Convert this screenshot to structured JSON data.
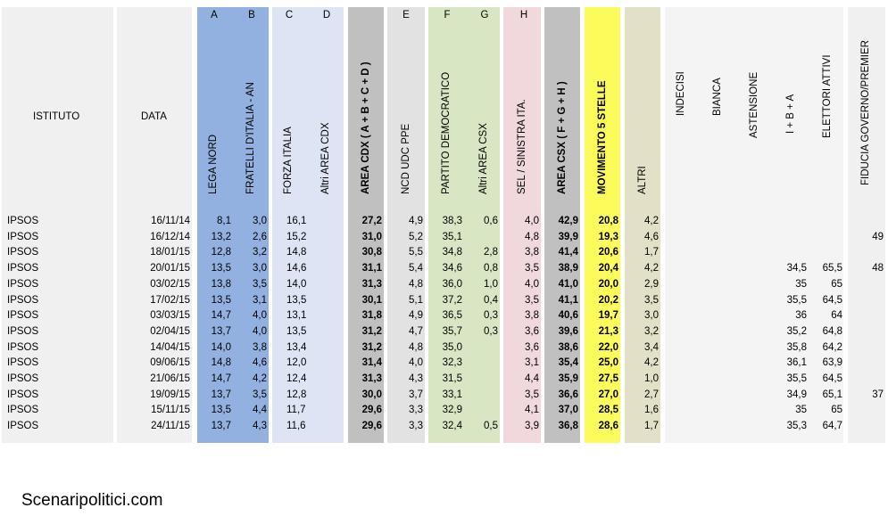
{
  "header": {
    "istituto": "ISTITUTO",
    "data": "DATA",
    "letters": [
      "A",
      "B",
      "C",
      "D",
      "E",
      "F",
      "G",
      "H"
    ],
    "columns": {
      "lega": "LEGA NORD",
      "fdi": "FRATELLI D'ITALIA - AN",
      "fi": "FORZA ITALIA",
      "altri_cdx": "Altri AREA CDX",
      "area_cdx": "AREA CDX   ( A + B + C + D )",
      "ncd": "NCD UDC PPE",
      "pd": "PARTITO DEMOCRATICO",
      "altri_csx": "Altri AREA CSX",
      "sel": "SEL / SINISTRA ITA.",
      "area_csx": "AREA CSX    ( F + G + H )",
      "m5s": "MOVIMENTO 5 STELLE",
      "altri": "ALTRI",
      "indecisi": "INDECISI",
      "bianca": "BIANCA",
      "astensione": "ASTENSIONE",
      "iba": "I + B + A",
      "elettori": "ELETTORI ATTIVI",
      "fiducia": "FIDUCIA GOVERNO/PREMIER"
    }
  },
  "rows": [
    {
      "ist": "IPSOS",
      "date": "16/11/14",
      "a": "8,1",
      "b": "3,0",
      "c": "16,1",
      "d": "",
      "cdx": "27,2",
      "e": "4,9",
      "f": "38,3",
      "g": "0,6",
      "h": "4,0",
      "csx": "42,9",
      "m5s": "20,8",
      "alt": "4,2",
      "iba": "",
      "el": "",
      "fid": ""
    },
    {
      "ist": "IPSOS",
      "date": "16/12/14",
      "a": "13,2",
      "b": "2,6",
      "c": "15,2",
      "d": "",
      "cdx": "31,0",
      "e": "5,2",
      "f": "35,1",
      "g": "",
      "h": "4,8",
      "csx": "39,9",
      "m5s": "19,3",
      "alt": "4,6",
      "iba": "",
      "el": "",
      "fid": "49"
    },
    {
      "ist": "IPSOS",
      "date": "18/01/15",
      "a": "12,8",
      "b": "3,2",
      "c": "14,8",
      "d": "",
      "cdx": "30,8",
      "e": "5,5",
      "f": "34,8",
      "g": "2,8",
      "h": "3,8",
      "csx": "41,4",
      "m5s": "20,6",
      "alt": "1,7",
      "iba": "",
      "el": "",
      "fid": ""
    },
    {
      "ist": "IPSOS",
      "date": "20/01/15",
      "a": "13,5",
      "b": "3,0",
      "c": "14,6",
      "d": "",
      "cdx": "31,1",
      "e": "5,4",
      "f": "34,6",
      "g": "0,8",
      "h": "3,5",
      "csx": "38,9",
      "m5s": "20,4",
      "alt": "4,2",
      "iba": "34,5",
      "el": "65,5",
      "fid": "48"
    },
    {
      "ist": "IPSOS",
      "date": "03/02/15",
      "a": "13,8",
      "b": "3,5",
      "c": "14,0",
      "d": "",
      "cdx": "31,3",
      "e": "4,8",
      "f": "36,0",
      "g": "1,0",
      "h": "4,0",
      "csx": "41,0",
      "m5s": "20,0",
      "alt": "2,9",
      "iba": "35",
      "el": "65",
      "fid": ""
    },
    {
      "ist": "IPSOS",
      "date": "17/02/15",
      "a": "13,5",
      "b": "3,1",
      "c": "13,5",
      "d": "",
      "cdx": "30,1",
      "e": "5,1",
      "f": "37,2",
      "g": "0,4",
      "h": "3,5",
      "csx": "41,1",
      "m5s": "20,2",
      "alt": "3,5",
      "iba": "35,5",
      "el": "64,5",
      "fid": ""
    },
    {
      "ist": "IPSOS",
      "date": "03/03/15",
      "a": "14,7",
      "b": "4,0",
      "c": "13,1",
      "d": "",
      "cdx": "31,8",
      "e": "4,9",
      "f": "36,5",
      "g": "0,3",
      "h": "3,8",
      "csx": "40,6",
      "m5s": "19,7",
      "alt": "3,0",
      "iba": "36",
      "el": "64",
      "fid": ""
    },
    {
      "ist": "IPSOS",
      "date": "02/04/15",
      "a": "13,7",
      "b": "4,0",
      "c": "13,5",
      "d": "",
      "cdx": "31,2",
      "e": "4,7",
      "f": "35,7",
      "g": "0,3",
      "h": "3,6",
      "csx": "39,6",
      "m5s": "21,3",
      "alt": "3,2",
      "iba": "35,2",
      "el": "64,8",
      "fid": ""
    },
    {
      "ist": "IPSOS",
      "date": "14/04/15",
      "a": "14,0",
      "b": "3,8",
      "c": "13,4",
      "d": "",
      "cdx": "31,2",
      "e": "4,8",
      "f": "35,0",
      "g": "",
      "h": "3,6",
      "csx": "38,6",
      "m5s": "22,0",
      "alt": "3,4",
      "iba": "35,8",
      "el": "64,2",
      "fid": ""
    },
    {
      "ist": "IPSOS",
      "date": "09/06/15",
      "a": "14,8",
      "b": "4,6",
      "c": "12,0",
      "d": "",
      "cdx": "31,4",
      "e": "4,0",
      "f": "32,3",
      "g": "",
      "h": "3,1",
      "csx": "35,4",
      "m5s": "25,0",
      "alt": "4,2",
      "iba": "36,1",
      "el": "63,9",
      "fid": ""
    },
    {
      "ist": "IPSOS",
      "date": "21/06/15",
      "a": "14,7",
      "b": "4,2",
      "c": "12,4",
      "d": "",
      "cdx": "31,3",
      "e": "4,3",
      "f": "31,5",
      "g": "",
      "h": "4,4",
      "csx": "35,9",
      "m5s": "27,5",
      "alt": "1,0",
      "iba": "35,5",
      "el": "64,5",
      "fid": ""
    },
    {
      "ist": "IPSOS",
      "date": "19/09/15",
      "a": "13,7",
      "b": "3,5",
      "c": "12,8",
      "d": "",
      "cdx": "30,0",
      "e": "3,7",
      "f": "33,1",
      "g": "",
      "h": "3,5",
      "csx": "36,6",
      "m5s": "27,0",
      "alt": "2,7",
      "iba": "34,9",
      "el": "65,1",
      "fid": "37"
    },
    {
      "ist": "IPSOS",
      "date": "15/11/15",
      "a": "13,5",
      "b": "4,4",
      "c": "11,7",
      "d": "",
      "cdx": "29,6",
      "e": "3,3",
      "f": "32,9",
      "g": "",
      "h": "4,1",
      "csx": "37,0",
      "m5s": "28,5",
      "alt": "1,6",
      "iba": "35",
      "el": "65",
      "fid": ""
    },
    {
      "ist": "IPSOS",
      "date": "24/11/15",
      "a": "13,7",
      "b": "4,3",
      "c": "11,6",
      "d": "",
      "cdx": "29,6",
      "e": "3,3",
      "f": "32,4",
      "g": "0,5",
      "h": "3,9",
      "csx": "36,8",
      "m5s": "28,6",
      "alt": "1,7",
      "iba": "35,3",
      "el": "64,7",
      "fid": ""
    }
  ],
  "footer": "Scenaripolitici.com",
  "colors": {
    "gray": "#f0f0f0",
    "blue": "#93b1e0",
    "lightblue": "#dde4f4",
    "darkgray": "#c0c0c0",
    "midgray": "#e2e2e2",
    "green": "#d9e6c3",
    "pink": "#f0d8dc",
    "yellow": "#fbfb5c",
    "tan": "#e2e0c6"
  }
}
